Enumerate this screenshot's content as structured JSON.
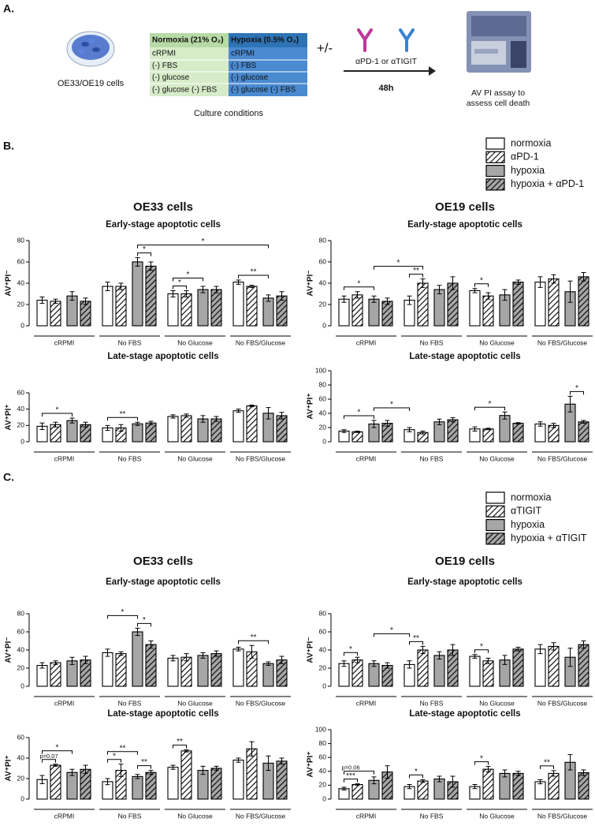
{
  "panel_a": {
    "label": "A.",
    "cells": "OE33/OE19 cells",
    "table": {
      "headers": [
        "Normoxia (21% O₂)",
        "Hypoxia (0.5% O₂)"
      ],
      "rows": [
        "cRPMI",
        "(-) FBS",
        "(-) glucose",
        "(-) glucose (-) FBS"
      ]
    },
    "caption": "Culture conditions",
    "plus_minus": "+/-",
    "antibodies": "αPD-1 or αTIGIT",
    "duration": "48h",
    "result": [
      "AV PI assay to",
      "assess cell death"
    ]
  },
  "panel_b_label": "B.",
  "panel_c_label": "C.",
  "chart_data": [
    {
      "type": "bar",
      "title": "OE33 cells",
      "subtitle": "Early-stage apoptotic cells",
      "ylabel": "AV⁺PI⁻",
      "categories": [
        "cRPMI",
        "No FBS",
        "No Glucose",
        "No FBS/Glucose"
      ],
      "ylim": [
        0,
        80
      ],
      "yticks": [
        0,
        20,
        40,
        60,
        80
      ],
      "series": [
        {
          "name": "normoxia",
          "color": "#ffffff",
          "hatch": false,
          "values": [
            24,
            37,
            30,
            41
          ],
          "errors": [
            3,
            4,
            3,
            2
          ]
        },
        {
          "name": "αPD-1",
          "color": "#ffffff",
          "hatch": true,
          "values": [
            23,
            37,
            30,
            37
          ],
          "errors": [
            2,
            3,
            3,
            1
          ]
        },
        {
          "name": "hypoxia",
          "color": "#a6a6a6",
          "hatch": false,
          "values": [
            28,
            60,
            34,
            26
          ],
          "errors": [
            4,
            4,
            3,
            3
          ]
        },
        {
          "name": "hypoxia + αPD-1",
          "color": "#a6a6a6",
          "hatch": true,
          "values": [
            23,
            56,
            34,
            28
          ],
          "errors": [
            3,
            4,
            3,
            4
          ]
        }
      ],
      "annotations": [
        {
          "text": "*",
          "from": [
            1,
            2
          ],
          "to": [
            1,
            3
          ]
        },
        {
          "text": "*",
          "from": [
            2,
            0
          ],
          "to": [
            2,
            1
          ]
        },
        {
          "text": "*",
          "from": [
            2,
            0
          ],
          "to": [
            2,
            2
          ]
        },
        {
          "text": "**",
          "from": [
            3,
            0
          ],
          "to": [
            3,
            2
          ]
        },
        {
          "text": "*",
          "from": [
            1,
            2
          ],
          "to": [
            3,
            2
          ]
        }
      ]
    },
    {
      "type": "bar",
      "title": "OE19 cells",
      "subtitle": "Early-stage apoptotic cells",
      "ylabel": "AV⁺PI⁻",
      "categories": [
        "cRPMI",
        "No FBS",
        "No Glucose",
        "No FBS/Glucose"
      ],
      "ylim": [
        0,
        80
      ],
      "yticks": [
        0,
        20,
        40,
        60,
        80
      ],
      "series": [
        {
          "color": "#ffffff",
          "hatch": false,
          "values": [
            25,
            24,
            33,
            41
          ],
          "errors": [
            3,
            4,
            2,
            5
          ]
        },
        {
          "color": "#ffffff",
          "hatch": true,
          "values": [
            29,
            40,
            28,
            44
          ],
          "errors": [
            3,
            4,
            3,
            4
          ]
        },
        {
          "color": "#a6a6a6",
          "hatch": false,
          "values": [
            25,
            34,
            29,
            32
          ],
          "errors": [
            3,
            4,
            5,
            10
          ]
        },
        {
          "color": "#a6a6a6",
          "hatch": true,
          "values": [
            23,
            40,
            41,
            46
          ],
          "errors": [
            3,
            6,
            2,
            4
          ]
        }
      ],
      "annotations": [
        {
          "text": "*",
          "from": [
            0,
            0
          ],
          "to": [
            0,
            2
          ]
        },
        {
          "text": "**",
          "from": [
            1,
            0
          ],
          "to": [
            1,
            1
          ]
        },
        {
          "text": "*",
          "from": [
            0,
            2
          ],
          "to": [
            1,
            1
          ]
        },
        {
          "text": "*",
          "from": [
            2,
            0
          ],
          "to": [
            2,
            1
          ]
        }
      ]
    },
    {
      "type": "bar",
      "subtitle": "Late-stage apoptotic cells",
      "ylabel": "AV⁺PI⁺",
      "categories": [
        "cRPMI",
        "No FBS",
        "No Glucose",
        "No FBS/Glucose"
      ],
      "ylim": [
        0,
        60
      ],
      "yticks": [
        0,
        20,
        40,
        60
      ],
      "series": [
        {
          "color": "#ffffff",
          "hatch": false,
          "values": [
            19,
            17,
            31,
            38
          ],
          "errors": [
            4,
            3,
            2,
            2
          ]
        },
        {
          "color": "#ffffff",
          "hatch": true,
          "values": [
            21,
            17,
            32,
            44
          ],
          "errors": [
            3,
            4,
            2,
            1
          ]
        },
        {
          "color": "#a6a6a6",
          "hatch": false,
          "values": [
            26,
            22,
            28,
            35
          ],
          "errors": [
            3,
            2,
            4,
            7
          ]
        },
        {
          "color": "#a6a6a6",
          "hatch": true,
          "values": [
            21,
            23,
            28,
            32
          ],
          "errors": [
            3,
            2,
            3,
            4
          ]
        }
      ],
      "annotations": [
        {
          "text": "*",
          "from": [
            0,
            0
          ],
          "to": [
            0,
            2
          ]
        },
        {
          "text": "**",
          "from": [
            1,
            0
          ],
          "to": [
            1,
            2
          ]
        }
      ]
    },
    {
      "type": "bar",
      "subtitle": "Late-stage apoptotic cells",
      "ylabel": "AV⁺PI⁺",
      "categories": [
        "cRPMI",
        "No FBS",
        "No Glucose",
        "No FBS/Glucose"
      ],
      "ylim": [
        0,
        100
      ],
      "yticks": [
        0,
        20,
        40,
        60,
        80,
        100
      ],
      "series": [
        {
          "color": "#ffffff",
          "hatch": false,
          "values": [
            15,
            17,
            18,
            25
          ],
          "errors": [
            2,
            3,
            3,
            3
          ]
        },
        {
          "color": "#ffffff",
          "hatch": true,
          "values": [
            14,
            13,
            18,
            23
          ],
          "errors": [
            1,
            2,
            1,
            3
          ]
        },
        {
          "color": "#a6a6a6",
          "hatch": false,
          "values": [
            25,
            28,
            37,
            53
          ],
          "errors": [
            5,
            4,
            5,
            11
          ]
        },
        {
          "color": "#a6a6a6",
          "hatch": true,
          "values": [
            26,
            31,
            26,
            28
          ],
          "errors": [
            4,
            3,
            1,
            2
          ]
        }
      ],
      "annotations": [
        {
          "text": "*",
          "from": [
            0,
            0
          ],
          "to": [
            0,
            2
          ]
        },
        {
          "text": "*",
          "from": [
            0,
            2
          ],
          "to": [
            1,
            0
          ]
        },
        {
          "text": "*",
          "from": [
            2,
            0
          ],
          "to": [
            2,
            2
          ]
        },
        {
          "text": "*",
          "from": [
            3,
            2
          ],
          "to": [
            3,
            3
          ]
        }
      ]
    },
    {
      "type": "bar",
      "title": "OE33 cells",
      "subtitle": "Early-stage apoptotic cells",
      "ylabel": "AV⁺PI⁻",
      "categories": [
        "cRPMI",
        "No FBS",
        "No Glucose",
        "No FBS/Glucose"
      ],
      "ylim": [
        0,
        80
      ],
      "yticks": [
        0,
        20,
        40,
        60,
        80
      ],
      "series": [
        {
          "name": "normoxia",
          "color": "#ffffff",
          "hatch": false,
          "values": [
            23,
            37,
            31,
            41
          ],
          "errors": [
            3,
            4,
            3,
            2
          ]
        },
        {
          "name": "αTIGIT",
          "color": "#ffffff",
          "hatch": true,
          "values": [
            26,
            36,
            32,
            38
          ],
          "errors": [
            2,
            2,
            4,
            7
          ]
        },
        {
          "name": "hypoxia",
          "color": "#a6a6a6",
          "hatch": false,
          "values": [
            28,
            60,
            34,
            25
          ],
          "errors": [
            4,
            4,
            3,
            2
          ]
        },
        {
          "name": "hypoxia + αTIGIT",
          "color": "#a6a6a6",
          "hatch": true,
          "values": [
            29,
            46,
            36,
            29
          ],
          "errors": [
            4,
            4,
            3,
            4
          ]
        }
      ],
      "annotations": [
        {
          "text": "*",
          "from": [
            1,
            2
          ],
          "to": [
            1,
            3
          ]
        },
        {
          "text": "*",
          "from": [
            1,
            0
          ],
          "to": [
            1,
            2
          ]
        },
        {
          "text": "**",
          "from": [
            3,
            0
          ],
          "to": [
            3,
            2
          ]
        }
      ]
    },
    {
      "type": "bar",
      "title": "OE19 cells",
      "subtitle": "Early-stage apoptotic cells",
      "ylabel": "AV⁺PI⁻",
      "categories": [
        "cRPMI",
        "No FBS",
        "No Glucose",
        "No FBS/Glucose"
      ],
      "ylim": [
        0,
        80
      ],
      "yticks": [
        0,
        20,
        40,
        60,
        80
      ],
      "series": [
        {
          "color": "#ffffff",
          "hatch": false,
          "values": [
            25,
            24,
            33,
            41
          ],
          "errors": [
            3,
            4,
            2,
            5
          ]
        },
        {
          "color": "#ffffff",
          "hatch": true,
          "values": [
            29,
            40,
            28,
            44
          ],
          "errors": [
            3,
            4,
            3,
            4
          ]
        },
        {
          "color": "#a6a6a6",
          "hatch": false,
          "values": [
            25,
            34,
            29,
            32
          ],
          "errors": [
            3,
            4,
            5,
            10
          ]
        },
        {
          "color": "#a6a6a6",
          "hatch": true,
          "values": [
            23,
            40,
            41,
            46
          ],
          "errors": [
            3,
            6,
            2,
            4
          ]
        }
      ],
      "annotations": [
        {
          "text": "*",
          "from": [
            0,
            0
          ],
          "to": [
            0,
            1
          ]
        },
        {
          "text": "**",
          "from": [
            1,
            0
          ],
          "to": [
            1,
            1
          ]
        },
        {
          "text": "*",
          "from": [
            0,
            2
          ],
          "to": [
            1,
            0
          ]
        },
        {
          "text": "*",
          "from": [
            2,
            0
          ],
          "to": [
            2,
            1
          ]
        }
      ]
    },
    {
      "type": "bar",
      "subtitle": "Late-stage apoptotic cells",
      "ylabel": "AV⁺PI⁺",
      "categories": [
        "cRPMI",
        "No FBS",
        "No Glucose",
        "No FBS/Glucose"
      ],
      "ylim": [
        0,
        60
      ],
      "yticks": [
        0,
        20,
        40,
        60
      ],
      "series": [
        {
          "color": "#ffffff",
          "hatch": false,
          "values": [
            19,
            17,
            31,
            38
          ],
          "errors": [
            4,
            3,
            2,
            2
          ]
        },
        {
          "color": "#ffffff",
          "hatch": true,
          "values": [
            33,
            28,
            47,
            49
          ],
          "errors": [
            1,
            6,
            1,
            7
          ]
        },
        {
          "color": "#a6a6a6",
          "hatch": false,
          "values": [
            26,
            22,
            28,
            35
          ],
          "errors": [
            3,
            2,
            4,
            7
          ]
        },
        {
          "color": "#a6a6a6",
          "hatch": true,
          "values": [
            29,
            26,
            30,
            37
          ],
          "errors": [
            4,
            2,
            2,
            3
          ]
        }
      ],
      "annotations": [
        {
          "text": "p=0.07",
          "from": [
            0,
            0
          ],
          "to": [
            0,
            1
          ]
        },
        {
          "text": "*",
          "from": [
            0,
            0
          ],
          "to": [
            0,
            2
          ]
        },
        {
          "text": "*",
          "from": [
            1,
            0
          ],
          "to": [
            1,
            1
          ]
        },
        {
          "text": "**",
          "from": [
            1,
            2
          ],
          "to": [
            1,
            3
          ]
        },
        {
          "text": "**",
          "from": [
            1,
            0
          ],
          "to": [
            1,
            2
          ]
        },
        {
          "text": "**",
          "from": [
            2,
            0
          ],
          "to": [
            2,
            1
          ]
        }
      ]
    },
    {
      "type": "bar",
      "subtitle": "Late-stage apoptotic cells",
      "ylabel": "AV⁺PI⁺",
      "categories": [
        "cRPMI",
        "No FBS",
        "No Glucose",
        "No FBS/Glucose"
      ],
      "ylim": [
        0,
        100
      ],
      "yticks": [
        0,
        20,
        40,
        60,
        80,
        100
      ],
      "series": [
        {
          "color": "#ffffff",
          "hatch": false,
          "values": [
            15,
            18,
            18,
            25
          ],
          "errors": [
            2,
            3,
            3,
            3
          ]
        },
        {
          "color": "#ffffff",
          "hatch": true,
          "values": [
            21,
            26,
            43,
            37
          ],
          "errors": [
            1,
            2,
            4,
            4
          ]
        },
        {
          "color": "#a6a6a6",
          "hatch": false,
          "values": [
            27,
            29,
            37,
            53
          ],
          "errors": [
            5,
            4,
            5,
            11
          ]
        },
        {
          "color": "#a6a6a6",
          "hatch": true,
          "values": [
            39,
            25,
            37,
            38
          ],
          "errors": [
            9,
            8,
            3,
            4
          ]
        }
      ],
      "annotations": [
        {
          "text": "***",
          "from": [
            0,
            0
          ],
          "to": [
            0,
            1
          ]
        },
        {
          "text": "p=0.06",
          "from": [
            0,
            0
          ],
          "to": [
            0,
            2
          ]
        },
        {
          "text": "*",
          "from": [
            1,
            0
          ],
          "to": [
            1,
            1
          ]
        },
        {
          "text": "*",
          "from": [
            2,
            0
          ],
          "to": [
            2,
            1
          ]
        },
        {
          "text": "**",
          "from": [
            3,
            0
          ],
          "to": [
            3,
            1
          ]
        }
      ]
    }
  ]
}
